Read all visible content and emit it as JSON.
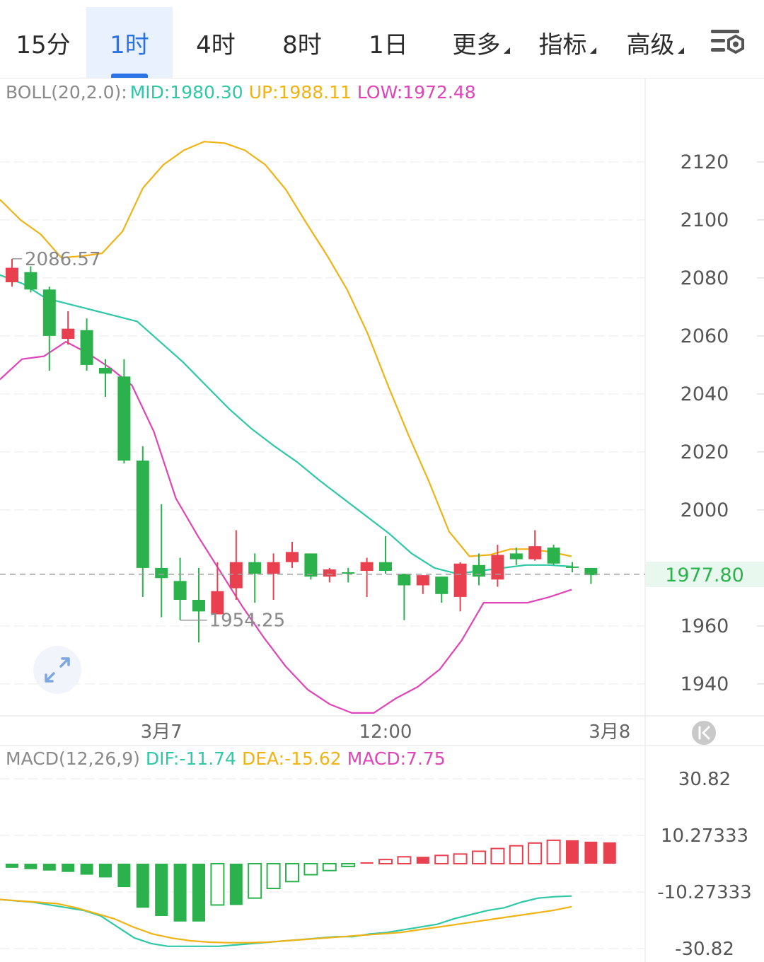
{
  "tabs": [
    {
      "label": "15分",
      "active": false,
      "dropdown": false
    },
    {
      "label": "1时",
      "active": true,
      "dropdown": false
    },
    {
      "label": "4时",
      "active": false,
      "dropdown": false
    },
    {
      "label": "8时",
      "active": false,
      "dropdown": false
    },
    {
      "label": "1日",
      "active": false,
      "dropdown": false
    },
    {
      "label": "更多",
      "active": false,
      "dropdown": true
    },
    {
      "label": "指标",
      "active": false,
      "dropdown": true
    },
    {
      "label": "高级",
      "active": false,
      "dropdown": true
    }
  ],
  "settings_icon": "chart-settings-icon",
  "expand_icon": "expand-icon",
  "scroll_end_icon": "scroll-to-latest-icon",
  "colors": {
    "up": "#e8404f",
    "down": "#2bb24c",
    "mid": "#2ec8a6",
    "upper": "#f0b315",
    "lower": "#df44b8",
    "dif": "#2ec8a6",
    "dea": "#f0b315",
    "macd": "#df44b8",
    "accent": "#2a73e6"
  },
  "chart_data": [
    {
      "type": "candlestick",
      "indicator": {
        "name": "BOLL(20,2.0):",
        "mid_label": "MID:1980.30",
        "up_label": "UP:1988.11",
        "low_label": "LOW:1972.48"
      },
      "y_ticks": [
        2120,
        2100,
        2080,
        2060,
        2040,
        2020,
        2000,
        1960,
        1940
      ],
      "ylim": [
        1929,
        2149
      ],
      "x_labels": [
        {
          "label": "3月7",
          "index": 8
        },
        {
          "label": "12:00",
          "index": 20
        },
        {
          "label": "3月8",
          "index": 32
        }
      ],
      "current_price": "1977.80",
      "max_marker": {
        "label": "2086.57",
        "index": 0
      },
      "min_marker": {
        "label": "1954.25",
        "index": 9
      },
      "candles": [
        {
          "o": 2078.5,
          "c": 2083.5,
          "h": 2086.6,
          "l": 2077
        },
        {
          "o": 2082,
          "c": 2076,
          "h": 2084,
          "l": 2075
        },
        {
          "o": 2076,
          "c": 2060,
          "h": 2077,
          "l": 2048
        },
        {
          "o": 2059,
          "c": 2062.5,
          "h": 2068.5,
          "l": 2057
        },
        {
          "o": 2062,
          "c": 2050,
          "h": 2066,
          "l": 2048
        },
        {
          "o": 2049,
          "c": 2047,
          "h": 2052,
          "l": 2039
        },
        {
          "o": 2046,
          "c": 2017,
          "h": 2052,
          "l": 2016
        },
        {
          "o": 2017,
          "c": 1980,
          "h": 2022,
          "l": 1970
        },
        {
          "o": 1980,
          "c": 1976.5,
          "h": 2002,
          "l": 1963
        },
        {
          "o": 1975.5,
          "c": 1969,
          "h": 1983.5,
          "l": 1962
        },
        {
          "o": 1969,
          "c": 1965,
          "h": 1980,
          "l": 1954.3
        },
        {
          "o": 1964,
          "c": 1972,
          "h": 1982,
          "l": 1964
        },
        {
          "o": 1973,
          "c": 1982,
          "h": 1993,
          "l": 1969
        },
        {
          "o": 1982,
          "c": 1978,
          "h": 1985,
          "l": 1968
        },
        {
          "o": 1978,
          "c": 1982,
          "h": 1985,
          "l": 1969
        },
        {
          "o": 1982,
          "c": 1985.5,
          "h": 1989,
          "l": 1980
        },
        {
          "o": 1985,
          "c": 1977,
          "h": 1985,
          "l": 1976
        },
        {
          "o": 1977,
          "c": 1979.5,
          "h": 1980,
          "l": 1975
        },
        {
          "o": 1978.5,
          "c": 1978,
          "h": 1980,
          "l": 1975
        },
        {
          "o": 1979,
          "c": 1982,
          "h": 1983.5,
          "l": 1970
        },
        {
          "o": 1982,
          "c": 1979,
          "h": 1991,
          "l": 1978
        },
        {
          "o": 1978,
          "c": 1974,
          "h": 1978,
          "l": 1962
        },
        {
          "o": 1974,
          "c": 1977.5,
          "h": 1977.5,
          "l": 1971
        },
        {
          "o": 1977,
          "c": 1971,
          "h": 1977,
          "l": 1968
        },
        {
          "o": 1970,
          "c": 1981.5,
          "h": 1982,
          "l": 1965
        },
        {
          "o": 1981,
          "c": 1977,
          "h": 1985,
          "l": 1974
        },
        {
          "o": 1976,
          "c": 1984.5,
          "h": 1988,
          "l": 1973.5
        },
        {
          "o": 1985,
          "c": 1983,
          "h": 1987,
          "l": 1981
        },
        {
          "o": 1983,
          "c": 1987.5,
          "h": 1993,
          "l": 1982.5
        },
        {
          "o": 1987,
          "c": 1981.5,
          "h": 1988,
          "l": 1981
        },
        {
          "o": 1980.5,
          "c": 1980,
          "h": 1982,
          "l": 1978.5
        },
        {
          "o": 1980,
          "c": 1977.5,
          "h": 1980,
          "l": 1974.5
        }
      ],
      "boll_upper": [
        2107,
        2100,
        2095,
        2087,
        2087.5,
        2088.5,
        2096,
        2111,
        2119,
        2124,
        2127,
        2126.5,
        2124,
        2119,
        2110.5,
        2099,
        2088,
        2076,
        2061,
        2043,
        2026,
        2010,
        1992.5,
        1984,
        1984.5,
        1986.5,
        1986.5,
        1985.5,
        1984
      ],
      "boll_mid": [
        2081,
        2078,
        2073,
        2071,
        2069,
        2067,
        2065,
        2058,
        2051,
        2043,
        2035,
        2028,
        2022,
        2016.5,
        2010,
        2004,
        1998,
        1992,
        1985,
        1980,
        1978,
        1979,
        1980,
        1981,
        1981,
        1980.5
      ],
      "boll_lower": [
        2045,
        2052,
        2053,
        2058,
        2054,
        2049,
        2043,
        2027,
        2004,
        1991,
        1979,
        1967,
        1956,
        1946,
        1938,
        1933,
        1930,
        1930,
        1935,
        1939,
        1945,
        1955,
        1968,
        1968,
        1968,
        1970,
        1972.5
      ],
      "boll_upper_start": 0,
      "boll_mid_start": 0,
      "boll_lower_start": 0
    },
    {
      "type": "bar+line",
      "indicator": {
        "name": "MACD(12,26,9)",
        "dif_label": "DIF:-11.74",
        "dea_label": "DEA:-15.62",
        "macd_label": "MACD:7.75"
      },
      "y_ticks": [
        "30.82",
        "10.27333",
        "-10.27333",
        "-30.82"
      ],
      "ylim": [
        -30.82,
        30.82
      ],
      "histogram": [
        -1.5,
        -2,
        -2.5,
        -3,
        -4,
        -5,
        -8.5,
        -16,
        -19,
        -21,
        -21,
        -15,
        -15,
        -12.5,
        -9,
        -6.5,
        -4,
        -2.5,
        -1,
        0.5,
        1.5,
        2.5,
        2.5,
        3,
        3.5,
        4.5,
        5.5,
        6.5,
        7.5,
        8.5,
        8.5,
        8,
        7.75
      ],
      "dif": [
        -13,
        -13.5,
        -14,
        -15,
        -16,
        -17,
        -19,
        -23,
        -27,
        -29,
        -30,
        -30,
        -30,
        -30,
        -29.5,
        -29,
        -28.5,
        -28,
        -27.5,
        -27,
        -26.5,
        -26.5,
        -25.5,
        -25,
        -24,
        -23,
        -22,
        -20,
        -18.5,
        -17,
        -16,
        -14,
        -12.5,
        -12,
        -11.74
      ],
      "dea": [
        -13,
        -13.5,
        -14,
        -14.5,
        -16,
        -18,
        -20,
        -23,
        -25.5,
        -27,
        -28,
        -28.5,
        -28.7,
        -28.7,
        -28.5,
        -28,
        -27.5,
        -27,
        -26.5,
        -26,
        -25.5,
        -25,
        -24,
        -23,
        -22,
        -21,
        -20,
        -19,
        -18,
        -17,
        -15.62
      ]
    }
  ]
}
